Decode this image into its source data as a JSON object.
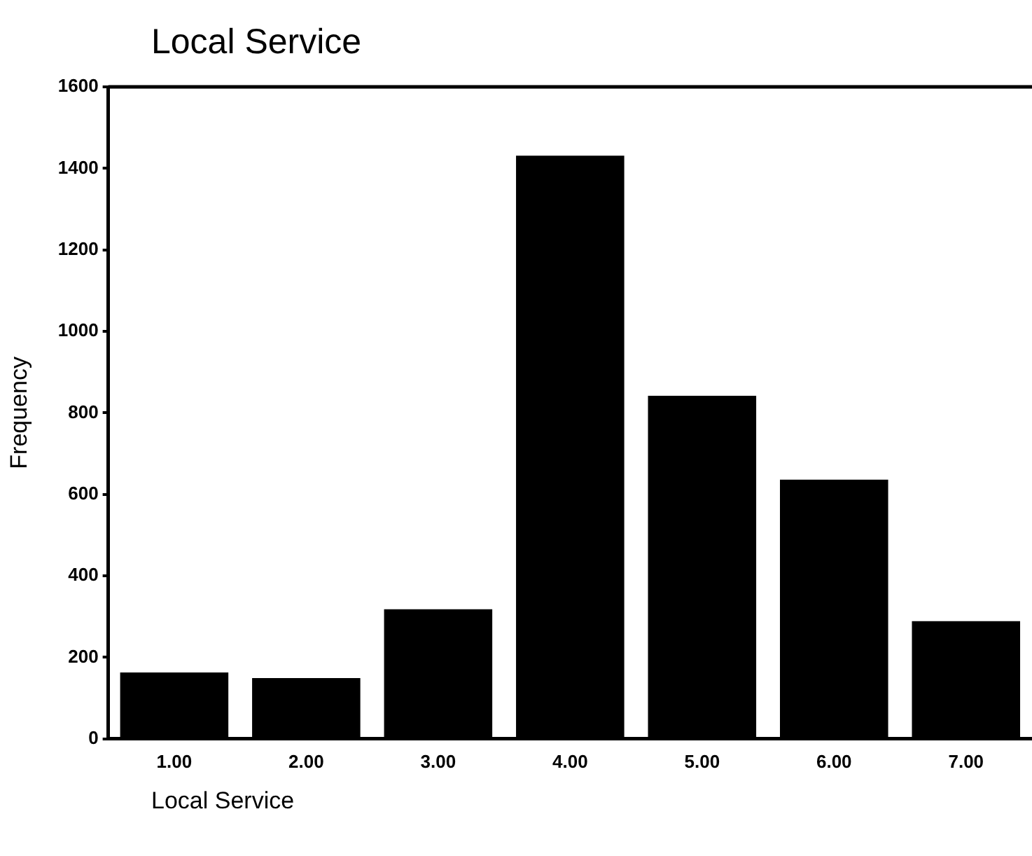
{
  "chart_data": {
    "type": "bar",
    "title": "Local Service",
    "xlabel": "Local Service",
    "ylabel": "Frequency",
    "categories": [
      "1.00",
      "2.00",
      "3.00",
      "4.00",
      "5.00",
      "6.00",
      "7.00"
    ],
    "values": [
      163,
      149,
      318,
      1431,
      842,
      636,
      289
    ],
    "color": "#000000",
    "ylim": [
      0,
      1600
    ],
    "yticks": [
      0,
      200,
      400,
      600,
      800,
      1000,
      1200,
      1400,
      1600
    ],
    "grid": false,
    "legend": false
  }
}
